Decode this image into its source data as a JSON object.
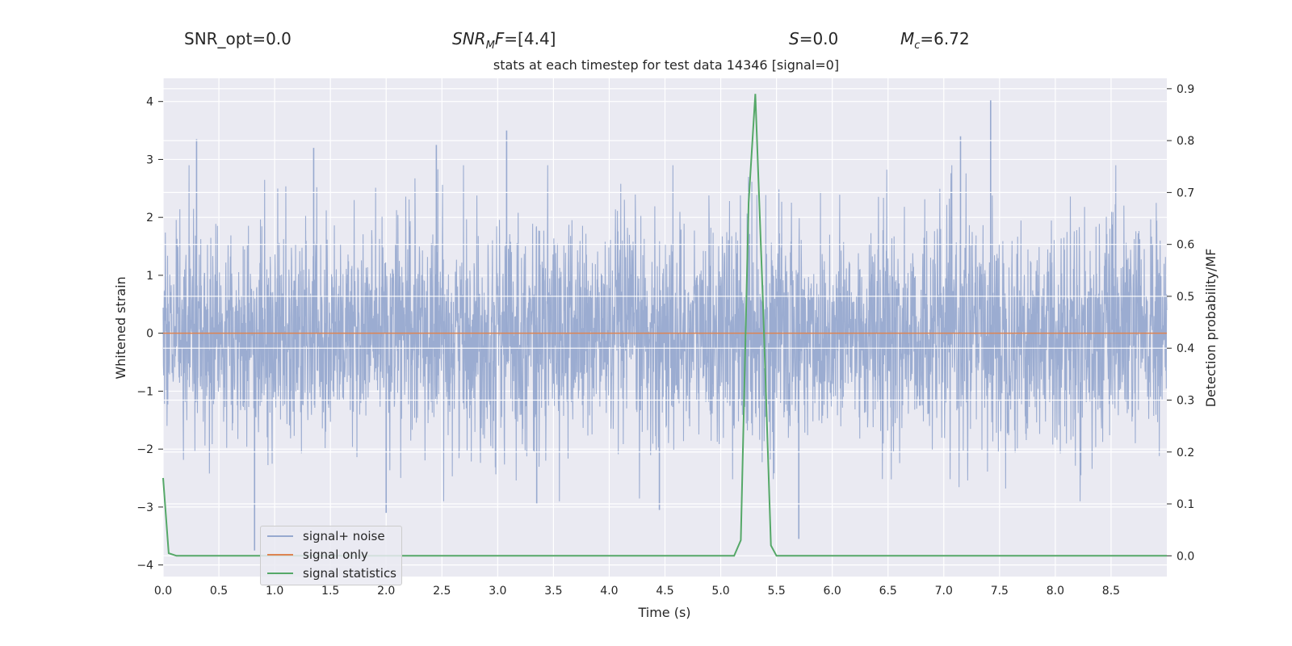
{
  "header": {
    "snr_opt": "SNR_opt=0.0",
    "snr_mf_base": "SNR",
    "snr_mf_sub": "M",
    "snr_mf_rest": "F=[4.4]",
    "s_var": "S",
    "s_val": "=0.0",
    "mc_var": "M",
    "mc_sub": "c",
    "mc_val": "=6.72"
  },
  "chart_data": {
    "type": "line",
    "title": "stats at each timestep for test data 14346 [signal=0]",
    "xlabel": "Time (s)",
    "ylabel": "Whitened strain",
    "y2label": "Detection probability/MF",
    "xlim": [
      0,
      9
    ],
    "ylim": [
      -4.2,
      4.4
    ],
    "y2lim": [
      -0.04,
      0.92
    ],
    "xticks": [
      "0.0",
      "0.5",
      "1.0",
      "1.5",
      "2.0",
      "2.5",
      "3.0",
      "3.5",
      "4.0",
      "4.5",
      "5.0",
      "5.5",
      "6.0",
      "6.5",
      "7.0",
      "7.5",
      "8.0",
      "8.5"
    ],
    "yticks": [
      "4",
      "3",
      "2",
      "1",
      "0",
      "−1",
      "−2",
      "−3",
      "−4"
    ],
    "y2ticks": [
      "0.9",
      "0.8",
      "0.7",
      "0.6",
      "0.5",
      "0.4",
      "0.3",
      "0.2",
      "0.1",
      "0.0"
    ],
    "grid": true,
    "legend_position": "lower-left",
    "series": [
      {
        "name": "signal+ noise",
        "color": "#97a9cf",
        "description_kind": "whitened noise, approx. Gaussian, amplitude within about ±4",
        "peaks": [
          [
            0.3,
            3.35
          ],
          [
            1.35,
            3.2
          ],
          [
            2.45,
            3.25
          ],
          [
            3.08,
            3.5
          ],
          [
            7.42,
            4.02
          ],
          [
            7.15,
            3.4
          ],
          [
            0.82,
            -3.75
          ],
          [
            5.7,
            -3.55
          ],
          [
            3.35,
            -2.95
          ],
          [
            2.0,
            -3.1
          ],
          [
            4.45,
            -3.05
          ]
        ]
      },
      {
        "name": "signal only",
        "color": "#dd8452",
        "x": [
          0,
          9
        ],
        "values": [
          0,
          0
        ]
      },
      {
        "name": "signal statistics",
        "color": "#55a868",
        "axis": "right",
        "x": [
          0.0,
          0.05,
          0.12,
          5.12,
          5.18,
          5.25,
          5.31,
          5.38,
          5.45,
          5.5,
          9.0
        ],
        "values": [
          0.15,
          0.005,
          0.0,
          0.0,
          0.03,
          0.68,
          0.89,
          0.48,
          0.02,
          0.0,
          0.0
        ]
      }
    ]
  }
}
